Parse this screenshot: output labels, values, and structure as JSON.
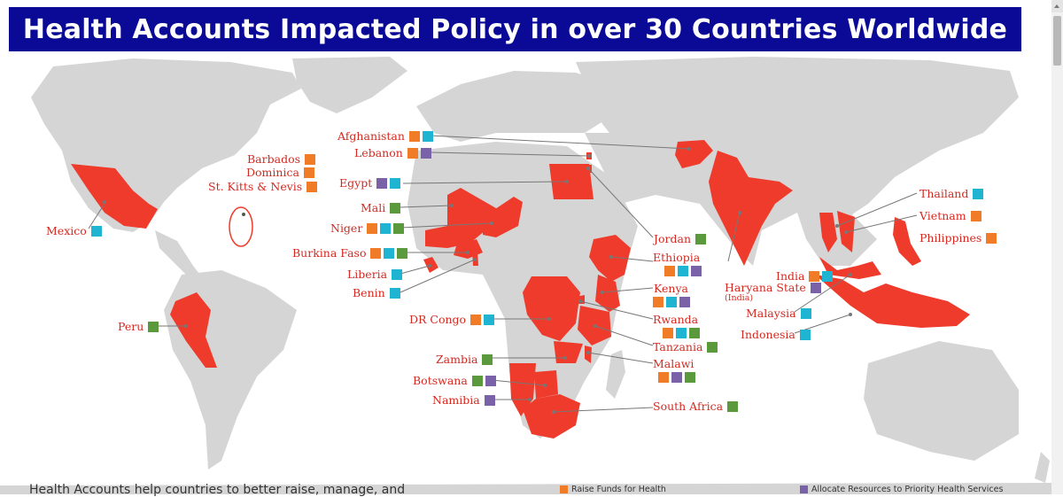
{
  "header": {
    "title": "Health Accounts Impacted Policy in over 30 Countries Worldwide"
  },
  "colors": {
    "banner": "#0a0a96",
    "highlight": "#ef3b2c",
    "land": "#d5d5d5",
    "raise": "#f07c27",
    "manage": "#1fb4d2",
    "allocate": "#7a62a8",
    "allocate_alt": "#5a9a3c",
    "label": "#d42a20"
  },
  "labels": [
    {
      "name": "Mexico",
      "squares": [
        "manage"
      ]
    },
    {
      "name": "Barbados",
      "squares": [
        "raise"
      ]
    },
    {
      "name": "Dominica",
      "squares": [
        "raise"
      ]
    },
    {
      "name": "St. Kitts & Nevis",
      "squares": [
        "raise"
      ]
    },
    {
      "name": "Peru",
      "squares": [
        "allocate_alt"
      ]
    },
    {
      "name": "Afghanistan",
      "squares": [
        "raise",
        "manage"
      ]
    },
    {
      "name": "Lebanon",
      "squares": [
        "raise",
        "allocate"
      ]
    },
    {
      "name": "Egypt",
      "squares": [
        "allocate",
        "manage"
      ]
    },
    {
      "name": "Mali",
      "squares": [
        "allocate_alt"
      ]
    },
    {
      "name": "Niger",
      "squares": [
        "raise",
        "manage",
        "allocate_alt"
      ]
    },
    {
      "name": "Burkina Faso",
      "squares": [
        "raise",
        "manage",
        "allocate_alt"
      ]
    },
    {
      "name": "Liberia",
      "squares": [
        "manage"
      ]
    },
    {
      "name": "Benin",
      "squares": [
        "manage"
      ]
    },
    {
      "name": "DR Congo",
      "squares": [
        "raise",
        "manage"
      ]
    },
    {
      "name": "Zambia",
      "squares": [
        "allocate_alt"
      ]
    },
    {
      "name": "Botswana",
      "squares": [
        "allocate_alt",
        "allocate"
      ]
    },
    {
      "name": "Namibia",
      "squares": [
        "allocate"
      ]
    },
    {
      "name": "Jordan",
      "squares": [
        "allocate_alt"
      ]
    },
    {
      "name": "Ethiopia",
      "squares": [
        "raise",
        "manage",
        "allocate"
      ]
    },
    {
      "name": "Kenya",
      "squares": [
        "raise",
        "manage",
        "allocate"
      ]
    },
    {
      "name": "Rwanda",
      "squares": [
        "raise",
        "manage",
        "allocate_alt"
      ]
    },
    {
      "name": "Tanzania",
      "squares": [
        "allocate_alt"
      ]
    },
    {
      "name": "Malawi",
      "squares": [
        "raise",
        "allocate",
        "allocate_alt"
      ]
    },
    {
      "name": "South Africa",
      "squares": [
        "allocate_alt"
      ]
    },
    {
      "name": "India",
      "squares": [
        "raise",
        "manage"
      ]
    },
    {
      "name": "Haryana State",
      "squares": [
        "allocate"
      ]
    },
    {
      "name": "Malaysia",
      "squares": [
        "manage"
      ]
    },
    {
      "name": "Indonesia",
      "squares": [
        "manage"
      ]
    },
    {
      "name": "Thailand",
      "squares": [
        "manage"
      ]
    },
    {
      "name": "Vietnam",
      "squares": [
        "raise"
      ]
    },
    {
      "name": "Philippines",
      "squares": [
        "raise"
      ]
    }
  ],
  "haryana_sub": "(India)",
  "footer": {
    "text": "Health Accounts help countries to better raise, manage, and",
    "legend_raise": "Raise Funds for Health",
    "legend_allocate": "Allocate Resources to Priority Health Services"
  }
}
